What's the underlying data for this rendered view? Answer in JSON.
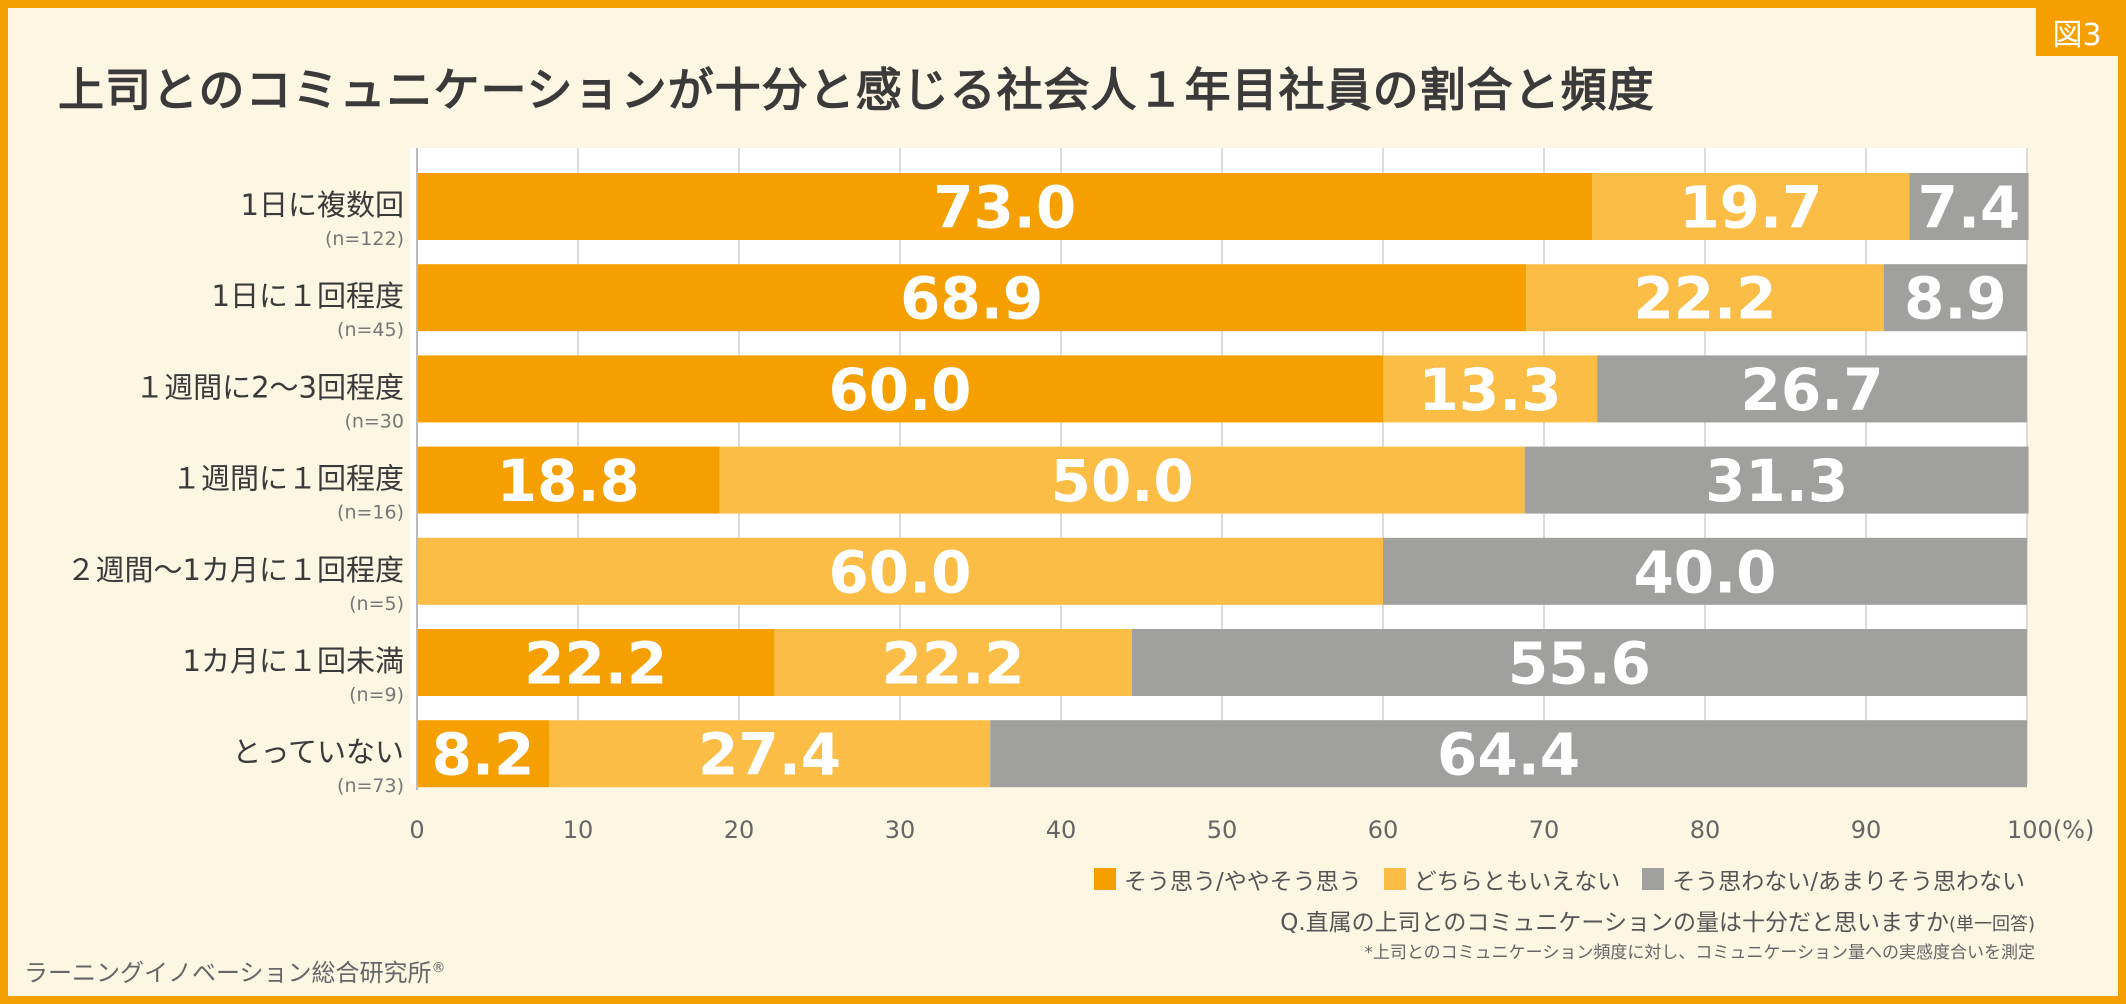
{
  "figure_tag": "図3",
  "chart_data": {
    "type": "bar",
    "orientation": "horizontal",
    "stacked": true,
    "title": "上司とのコミュニケーションが十分と感じる社会人１年目社員の割合と頻度",
    "categories": [
      "1日に複数回",
      "1日に１回程度",
      "１週間に2〜3回程度",
      "１週間に１回程度",
      "２週間〜1カ月に１回程度",
      "1カ月に１回未満",
      "とっていない"
    ],
    "category_n": [
      "(n=122)",
      "(n=45)",
      "(n=30",
      "(n=16)",
      "(n=5)",
      "(n=9)",
      "(n=73)"
    ],
    "series": [
      {
        "name": "そう思う/ややそう思う",
        "color": "#f5a000",
        "values": [
          73.0,
          68.9,
          60.0,
          18.8,
          0,
          22.2,
          8.2
        ]
      },
      {
        "name": "どちらともいえない",
        "color": "#fbbd45",
        "values": [
          19.7,
          22.2,
          13.3,
          50.0,
          60.0,
          22.2,
          27.4
        ]
      },
      {
        "name": "そう思わない/あまりそう思わない",
        "color": "#a0a09e",
        "values": [
          7.4,
          8.9,
          26.7,
          31.3,
          40.0,
          55.6,
          64.4
        ]
      }
    ],
    "xlim": [
      0,
      100
    ],
    "xticks": [
      "0",
      "10",
      "20",
      "30",
      "40",
      "50",
      "60",
      "70",
      "80",
      "90",
      "100(%)"
    ],
    "grid": true,
    "legend": "bottom-right"
  },
  "question": "Q.直属の上司とのコミュニケーションの量は十分だと思いますか",
  "question_note": "(単一回答)",
  "footnote": "*上司とのコミュニケーション頻度に対し、コミュニケーション量への実感度合いを測定",
  "source": "ラーニングイノベーション総合研究所",
  "source_mark": "®"
}
